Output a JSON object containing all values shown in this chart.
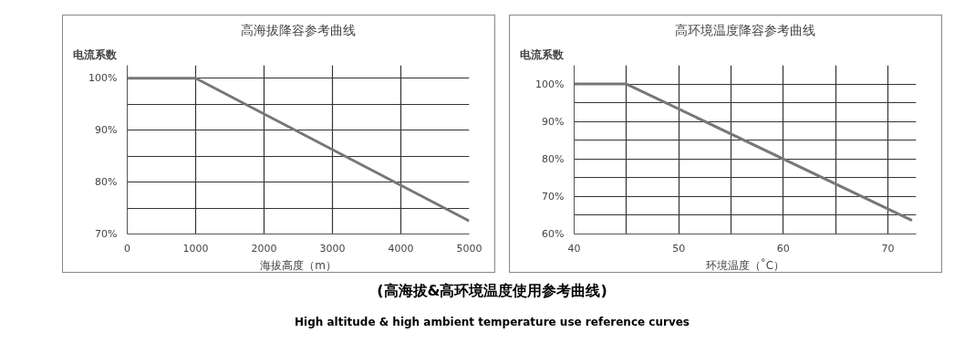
{
  "chart_data": [
    {
      "type": "line",
      "title": "高海拔降容参考曲线",
      "xlabel": "海拔高度（m）",
      "ylabel": "电流系数",
      "series": [
        {
          "color": "#777777",
          "x": [
            0,
            1000,
            5000
          ],
          "values": [
            100,
            100,
            72.5
          ]
        }
      ],
      "xlim": [
        0,
        5000
      ],
      "ylim": [
        70,
        102.5
      ],
      "xticks": [
        0,
        1000,
        2000,
        3000,
        4000,
        5000
      ],
      "yticks": [
        {
          "value": 70,
          "label": "70%"
        },
        {
          "value": 75,
          "label": null
        },
        {
          "value": 80,
          "label": "80%"
        },
        {
          "value": 85,
          "label": null
        },
        {
          "value": 90,
          "label": "90%"
        },
        {
          "value": 95,
          "label": null
        },
        {
          "value": 100,
          "label": "100%"
        }
      ],
      "grid": true,
      "marker": "none",
      "line_style": "solid"
    },
    {
      "type": "line",
      "title": "高环境温度降容参考曲线",
      "xlabel": "环境温度（˚C）",
      "ylabel": "电流系数",
      "series": [
        {
          "color": "#777777",
          "x": [
            40,
            45,
            72.3
          ],
          "values": [
            100,
            100,
            63.6
          ]
        }
      ],
      "xlim": [
        40,
        72.7
      ],
      "ylim": [
        60,
        105
      ],
      "xticks": [
        40,
        {
          "value": 45,
          "label": null
        },
        50,
        {
          "value": 55,
          "label": null
        },
        60,
        {
          "value": 65,
          "label": null
        },
        70
      ],
      "yticks": [
        {
          "value": 60,
          "label": "60%"
        },
        {
          "value": 65,
          "label": null
        },
        {
          "value": 70,
          "label": "70%"
        },
        {
          "value": 75,
          "label": null
        },
        {
          "value": 80,
          "label": "80%"
        },
        {
          "value": 85,
          "label": null
        },
        {
          "value": 90,
          "label": "90%"
        },
        {
          "value": 95,
          "label": null
        },
        {
          "value": 100,
          "label": "100%"
        }
      ],
      "grid": true,
      "marker": "none",
      "line_style": "solid",
      "annotations": [
        "(高海拔&高环境温度使用参考曲线)",
        "High altitude & high ambient temperature use reference curves"
      ]
    }
  ]
}
